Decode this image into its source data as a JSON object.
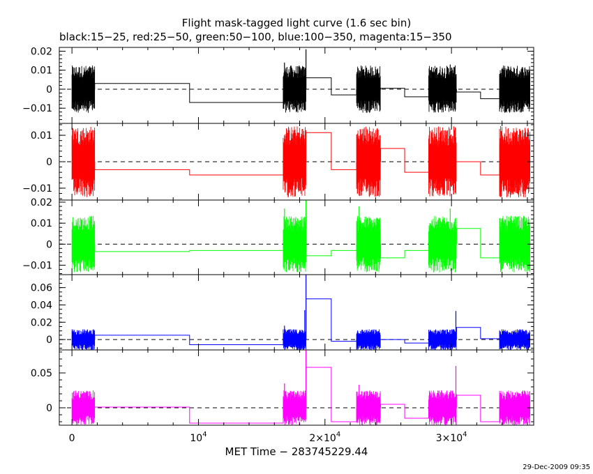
{
  "chart_data": {
    "type": "line",
    "title": "Flight mask-tagged light curve (1.6 sec bin)",
    "subtitle": "black:15−25, red:25−50, green:50−100, blue:100−350, magenta:15−350",
    "xlabel": "MET Time − 283745229.44",
    "timestamp": "29-Dec-2009 09:35",
    "xlim": [
      -1000,
      36500
    ],
    "x_ticks": [
      {
        "value": 0,
        "label": "0",
        "sup": ""
      },
      {
        "value": 10000,
        "label": "10",
        "sup": "4"
      },
      {
        "value": 20000,
        "label": "2×10",
        "sup": "4"
      },
      {
        "value": 30000,
        "label": "3×10",
        "sup": "4"
      }
    ],
    "x_minor_step": 2000,
    "reference_line": 0,
    "observation_intervals": [
      [
        0,
        1800
      ],
      [
        16700,
        18500
      ],
      [
        22500,
        24400
      ],
      [
        28200,
        30400
      ],
      [
        33800,
        36200
      ]
    ],
    "panels": [
      {
        "color": "#000000",
        "band": "15−25",
        "ylim": [
          -0.018,
          0.022
        ],
        "y_ticks": [
          {
            "value": 0.02,
            "label": "0.02"
          },
          {
            "value": 0.01,
            "label": "0.01"
          },
          {
            "value": 0,
            "label": "0"
          },
          {
            "value": -0.01,
            "label": "−0.01"
          }
        ],
        "y_minor_step": 0.002,
        "noise_amp": 0.0125,
        "spikes": [
          [
            18500,
            0.021
          ],
          [
            16800,
            0.014
          ],
          [
            29900,
            0.013
          ]
        ],
        "steps": [
          [
            0,
            0
          ],
          [
            1800,
            0.003
          ],
          [
            9300,
            -0.007
          ],
          [
            16700,
            0
          ],
          [
            18500,
            0.006
          ],
          [
            20500,
            -0.003
          ],
          [
            22500,
            0
          ],
          [
            24400,
            0.0005
          ],
          [
            26300,
            -0.004
          ],
          [
            28200,
            0
          ],
          [
            30400,
            -0.0015
          ],
          [
            32300,
            -0.005
          ],
          [
            33800,
            0
          ],
          [
            36200,
            0
          ]
        ]
      },
      {
        "color": "#ff0000",
        "band": "25−50",
        "ylim": [
          -0.0145,
          0.0145
        ],
        "y_ticks": [
          {
            "value": 0.01,
            "label": "0.01"
          },
          {
            "value": 0,
            "label": "0"
          },
          {
            "value": -0.01,
            "label": "−0.01"
          }
        ],
        "y_minor_step": 0.002,
        "noise_amp": 0.0135,
        "spikes": [],
        "steps": [
          [
            0,
            0
          ],
          [
            1800,
            -0.003
          ],
          [
            9300,
            -0.005
          ],
          [
            16700,
            0
          ],
          [
            18500,
            0.011
          ],
          [
            20500,
            -0.003
          ],
          [
            22500,
            0
          ],
          [
            24400,
            0.005
          ],
          [
            26300,
            -0.004
          ],
          [
            28200,
            0
          ],
          [
            30400,
            0.0
          ],
          [
            32300,
            -0.005
          ],
          [
            33800,
            0
          ],
          [
            36200,
            0
          ]
        ]
      },
      {
        "color": "#00ff00",
        "band": "50−100",
        "ylim": [
          -0.0145,
          0.021
        ],
        "y_ticks": [
          {
            "value": 0.02,
            "label": "0.02"
          },
          {
            "value": 0.01,
            "label": "0.01"
          },
          {
            "value": 0,
            "label": "0"
          },
          {
            "value": -0.01,
            "label": "−0.01"
          }
        ],
        "y_minor_step": 0.002,
        "noise_amp": 0.0135,
        "spikes": [
          [
            18500,
            0.021
          ],
          [
            16800,
            0.017
          ],
          [
            22700,
            0.018
          ],
          [
            29900,
            0.017
          ]
        ],
        "steps": [
          [
            0,
            0
          ],
          [
            1800,
            -0.0035
          ],
          [
            9300,
            -0.003
          ],
          [
            16700,
            0
          ],
          [
            18500,
            -0.0055
          ],
          [
            20500,
            -0.003
          ],
          [
            22500,
            0
          ],
          [
            24400,
            -0.0065
          ],
          [
            26300,
            -0.003
          ],
          [
            28200,
            0
          ],
          [
            30400,
            0.0075
          ],
          [
            32300,
            -0.0065
          ],
          [
            33800,
            0
          ],
          [
            36200,
            0
          ]
        ]
      },
      {
        "color": "#0000ff",
        "band": "100−350",
        "ylim": [
          -0.012,
          0.075
        ],
        "y_ticks": [
          {
            "value": 0.06,
            "label": "0.06"
          },
          {
            "value": 0.04,
            "label": "0.04"
          },
          {
            "value": 0.02,
            "label": "0.02"
          },
          {
            "value": 0,
            "label": "0"
          }
        ],
        "y_minor_step": 0.005,
        "noise_amp": 0.012,
        "spikes": [
          [
            18500,
            0.075
          ],
          [
            18400,
            0.034
          ],
          [
            30350,
            0.033
          ],
          [
            16800,
            0.016
          ]
        ],
        "steps": [
          [
            0,
            0
          ],
          [
            1800,
            0.005
          ],
          [
            9300,
            -0.006
          ],
          [
            16700,
            0
          ],
          [
            18500,
            0.047
          ],
          [
            20500,
            -0.002
          ],
          [
            22500,
            0
          ],
          [
            24400,
            0.0
          ],
          [
            26300,
            -0.004
          ],
          [
            28200,
            0
          ],
          [
            30400,
            0.014
          ],
          [
            32300,
            0.001
          ],
          [
            33800,
            0
          ],
          [
            36200,
            0
          ]
        ]
      },
      {
        "color": "#ff00ff",
        "band": "15−350",
        "ylim": [
          -0.025,
          0.083
        ],
        "y_ticks": [
          {
            "value": 0.05,
            "label": "0.05"
          },
          {
            "value": 0,
            "label": "0"
          }
        ],
        "y_minor_step": 0.01,
        "noise_amp": 0.025,
        "spikes": [
          [
            18500,
            0.083
          ],
          [
            30350,
            0.06
          ],
          [
            16800,
            0.035
          ],
          [
            22700,
            0.033
          ]
        ],
        "steps": [
          [
            0,
            0
          ],
          [
            1800,
            0.001
          ],
          [
            9300,
            -0.022
          ],
          [
            16700,
            0
          ],
          [
            18500,
            0.058
          ],
          [
            20500,
            -0.02
          ],
          [
            22500,
            0
          ],
          [
            24400,
            0.005
          ],
          [
            26300,
            -0.015
          ],
          [
            28200,
            0
          ],
          [
            30400,
            0.018
          ],
          [
            32300,
            -0.02
          ],
          [
            33800,
            0
          ],
          [
            36200,
            0
          ]
        ]
      }
    ]
  }
}
